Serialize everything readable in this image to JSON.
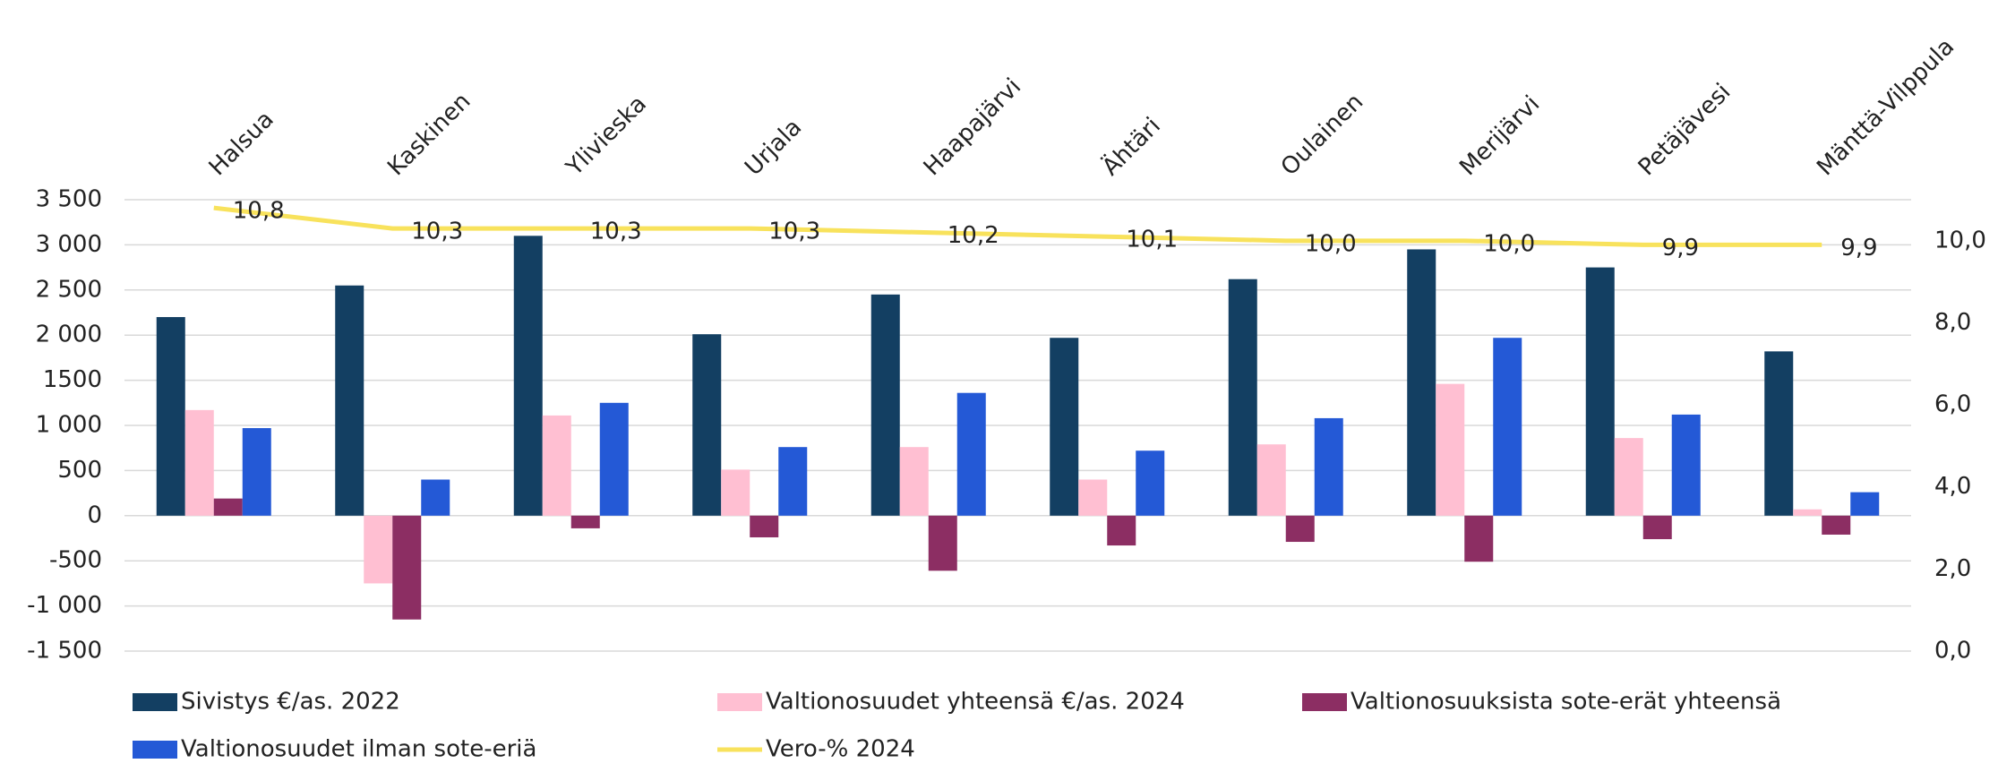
{
  "chart_data": {
    "type": "bar",
    "categories": [
      "Halsua",
      "Kaskinen",
      "Ylivieska",
      "Urjala",
      "Haapajärvi",
      "Ähtäri",
      "Oulainen",
      "Merijärvi",
      "Petäjävesi",
      "Mänttä-Vilppula"
    ],
    "series": [
      {
        "name": "Sivistys €/as. 2022",
        "color": "#133f62",
        "values": [
          2200,
          2550,
          3100,
          2010,
          2450,
          1970,
          2620,
          2950,
          2750,
          1820
        ]
      },
      {
        "name": "Valtionosuudet yhteensä €/as. 2024",
        "color": "#ffbfd2",
        "values": [
          1170,
          -750,
          1110,
          510,
          760,
          400,
          790,
          1460,
          860,
          70
        ]
      },
      {
        "name": "Valtionosuuksista sote-erät yhteensä",
        "color": "#8c2e63",
        "values": [
          190,
          -1150,
          -140,
          -240,
          -610,
          -330,
          -290,
          -510,
          -260,
          -210
        ]
      },
      {
        "name": "Valtionosuudet ilman sote-eriä",
        "color": "#2459d6",
        "values": [
          970,
          400,
          1250,
          760,
          1360,
          720,
          1080,
          1970,
          1120,
          260
        ]
      },
      {
        "name": "Vero-% 2024",
        "color": "#f8e25c",
        "type": "line",
        "axis": "y2",
        "values": [
          10.8,
          10.3,
          10.3,
          10.3,
          10.2,
          10.1,
          10.0,
          10.0,
          9.9,
          9.9
        ],
        "value_labels": [
          "10,8",
          "10,3",
          "10,3",
          "10,3",
          "10,2",
          "10,1",
          "10,0",
          "10,0",
          "9,9",
          "9,9"
        ]
      }
    ],
    "ylim": [
      -1500,
      3500
    ],
    "yticks": [
      {
        "value": -1500,
        "label": "-1 500"
      },
      {
        "value": -1000,
        "label": "-1 000"
      },
      -500,
      0,
      500,
      {
        "value": 1000,
        "label": "1 000"
      },
      1500,
      {
        "value": 2000,
        "label": "2 000"
      },
      {
        "value": 2500,
        "label": "2 500"
      },
      {
        "value": 3000,
        "label": "3 000"
      },
      {
        "value": 3500,
        "label": "3 500"
      }
    ],
    "y2lim": [
      0,
      11
    ],
    "y2ticks": [
      {
        "value": 0,
        "label": "0,0"
      },
      {
        "value": 2,
        "label": "2,0"
      },
      {
        "value": 4,
        "label": "4,0"
      },
      {
        "value": 6,
        "label": "6,0"
      },
      {
        "value": 8,
        "label": "8,0"
      },
      {
        "value": 10,
        "label": "10,0"
      }
    ],
    "grid": true,
    "legend": "bottom"
  }
}
